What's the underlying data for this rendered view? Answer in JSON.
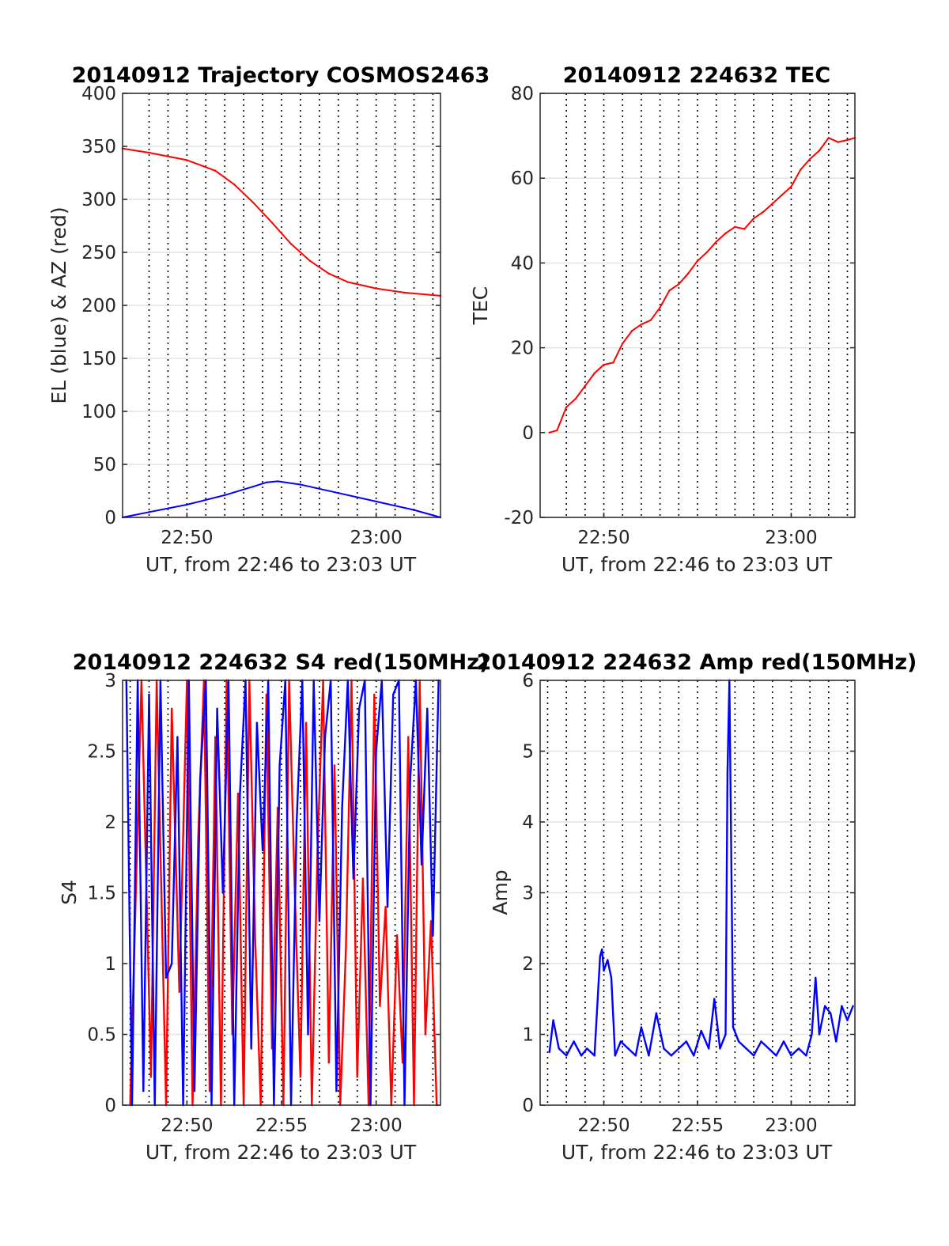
{
  "chart_data": [
    {
      "id": "trajectory",
      "type": "line",
      "title": "20140912 Trajectory COSMOS2463",
      "xlabel": "UT, from 22:46 to 23:03 UT",
      "ylabel": "EL (blue) & AZ (red)",
      "xlim_minutes": [
        46.6,
        63.4
      ],
      "ylim": [
        0,
        400
      ],
      "yticks": [
        0,
        50,
        100,
        150,
        200,
        250,
        300,
        350,
        400
      ],
      "ytick_labels": [
        "0",
        "50",
        "100",
        "150",
        "200",
        "250",
        "300",
        "350",
        "400"
      ],
      "xticks_minutes": [
        50,
        60
      ],
      "xtick_labels": [
        "22:50",
        "23:00"
      ],
      "xgrid_minutes": [
        48,
        49,
        50,
        51,
        52,
        53,
        54,
        55,
        56,
        57,
        58,
        59,
        60,
        61,
        62,
        63
      ],
      "grid": true,
      "series": [
        {
          "key": "az",
          "color": "#ff0000",
          "x": [
            46.6,
            48,
            50,
            51.5,
            52.5,
            53.5,
            54.5,
            55.5,
            56.5,
            57.5,
            58.5,
            60,
            61.5,
            63.4
          ],
          "y": [
            348,
            344,
            337,
            327,
            314,
            297,
            278,
            258,
            242,
            230,
            222,
            216,
            212,
            209
          ]
        },
        {
          "key": "el",
          "color": "#0000ff",
          "x": [
            46.6,
            48,
            50,
            52,
            53.5,
            54.2,
            54.8,
            56,
            58,
            60,
            62,
            63.4
          ],
          "y": [
            0,
            5,
            12,
            21,
            29,
            33,
            34,
            31,
            23,
            15,
            7,
            0
          ]
        }
      ]
    },
    {
      "id": "tec",
      "type": "line",
      "title": "20140912 224632 TEC",
      "xlabel": "UT, from 22:46 to 23:03 UT",
      "ylabel": "TEC",
      "xlim_minutes": [
        46.6,
        63.4
      ],
      "ylim": [
        -20,
        80
      ],
      "yticks": [
        -20,
        0,
        20,
        40,
        60,
        80
      ],
      "ytick_labels": [
        "-20",
        "0",
        "20",
        "40",
        "60",
        "80"
      ],
      "xticks_minutes": [
        50,
        60
      ],
      "xtick_labels": [
        "22:50",
        "23:00"
      ],
      "xgrid_minutes": [
        48,
        49,
        50,
        51,
        52,
        53,
        54,
        55,
        56,
        57,
        58,
        59,
        60,
        61,
        62,
        63
      ],
      "grid": true,
      "series": [
        {
          "key": "tec",
          "color": "#ff0000",
          "x": [
            47.1,
            47.5,
            48,
            48.5,
            49,
            49.5,
            50,
            50.5,
            51,
            51.5,
            52,
            52.5,
            53,
            53.5,
            54,
            54.5,
            55,
            55.5,
            56,
            56.5,
            57,
            57.5,
            58,
            58.5,
            59,
            59.5,
            60,
            60.5,
            61,
            61.5,
            62,
            62.5,
            63,
            63.4
          ],
          "y": [
            0,
            0.5,
            6,
            8,
            11,
            14,
            16,
            16.5,
            21,
            24,
            25.5,
            26.5,
            29.5,
            33.5,
            35,
            37.5,
            40.5,
            42.5,
            45,
            47,
            48.5,
            48,
            50.5,
            52,
            54,
            56,
            58,
            62,
            64.5,
            66.5,
            69.5,
            68.5,
            69,
            69.5
          ]
        }
      ]
    },
    {
      "id": "s4",
      "type": "line",
      "title": "20140912 224632 S4 red(150MHz)",
      "xlabel": "UT, from 22:46 to 23:03 UT",
      "ylabel": "S4",
      "xlim_minutes": [
        46.6,
        63.4
      ],
      "ylim": [
        0,
        3
      ],
      "yticks": [
        0,
        0.5,
        1,
        1.5,
        2,
        2.5,
        3
      ],
      "ytick_labels": [
        "0",
        "0.5",
        "1",
        "1.5",
        "2",
        "2.5",
        "3"
      ],
      "xticks_minutes": [
        50,
        55,
        60
      ],
      "xtick_labels": [
        "22:50",
        "22:55",
        "23:00"
      ],
      "xgrid_minutes": [
        47,
        48,
        49,
        50,
        51,
        52,
        53,
        54,
        55,
        56,
        57,
        58,
        59,
        60,
        61,
        62,
        63
      ],
      "grid": true,
      "series": [
        {
          "key": "s4_red",
          "color": "#ff0000",
          "x": [
            47.0,
            47.6,
            48.1,
            48.4,
            48.9,
            49.2,
            49.6,
            50.0,
            50.3,
            50.6,
            50.9,
            51.2,
            51.5,
            51.8,
            52.1,
            52.4,
            52.7,
            53.0,
            53.3,
            53.6,
            53.9,
            54.2,
            54.5,
            54.8,
            55.1,
            55.4,
            55.7,
            56.0,
            56.3,
            56.6,
            56.9,
            57.2,
            57.5,
            57.8,
            58.1,
            58.4,
            58.7,
            59.0,
            59.3,
            59.6,
            59.9,
            60.2,
            60.5,
            60.8,
            61.1,
            61.4,
            61.7,
            62.0,
            62.3,
            62.6,
            62.9,
            63.2
          ],
          "y": [
            0,
            3,
            0.2,
            3,
            0,
            2.8,
            0.8,
            3,
            0,
            1.9,
            3,
            0.1,
            2.6,
            0,
            3,
            0.5,
            2.2,
            0,
            3,
            1.2,
            0,
            2.9,
            0.4,
            2.1,
            0,
            3,
            1.5,
            0.2,
            2.7,
            0,
            1.8,
            3,
            0.3,
            2.4,
            0,
            1.1,
            3,
            0.2,
            1.6,
            0,
            2.9,
            0.7,
            1.4,
            0,
            1.2,
            0.3,
            2.6,
            0,
            3,
            0.5,
            1.3,
            0
          ]
        },
        {
          "key": "s4_blue",
          "color": "#0000ff",
          "x": [
            46.8,
            47.1,
            47.4,
            47.7,
            48.0,
            48.3,
            48.6,
            48.9,
            49.2,
            49.5,
            49.8,
            50.1,
            50.4,
            50.7,
            51.0,
            51.3,
            51.6,
            51.9,
            52.2,
            52.5,
            52.8,
            53.1,
            53.4,
            53.7,
            54.0,
            54.3,
            54.6,
            54.9,
            55.2,
            55.5,
            55.8,
            56.1,
            56.4,
            56.7,
            57.0,
            57.3,
            57.6,
            57.9,
            58.2,
            58.5,
            58.8,
            59.1,
            59.4,
            59.7,
            60.0,
            60.3,
            60.6,
            60.9,
            61.2,
            61.5,
            61.8,
            62.1,
            62.4,
            62.7,
            63.0,
            63.3
          ],
          "y": [
            3,
            0,
            3,
            0.1,
            2.9,
            0,
            3,
            0.9,
            1.0,
            2.6,
            0,
            3,
            0.1,
            2.3,
            3,
            0,
            2.8,
            1.5,
            3,
            0,
            2.2,
            3,
            0.4,
            2.7,
            1.8,
            3,
            0,
            2.4,
            3,
            0,
            2.0,
            3,
            0.5,
            3,
            1.3,
            2.6,
            3,
            0.1,
            2.1,
            3,
            1.6,
            2.8,
            3,
            0,
            2.5,
            3,
            1.4,
            2.9,
            3,
            0,
            2.3,
            3,
            1.7,
            2.8,
            1.2,
            3
          ]
        }
      ]
    },
    {
      "id": "amp",
      "type": "line",
      "title": "20140912 224632 Amp red(150MHz)",
      "xlabel": "UT, from 22:46 to 23:03 UT",
      "ylabel": "Amp",
      "xlim_minutes": [
        46.6,
        63.4
      ],
      "ylim": [
        0,
        6
      ],
      "yticks": [
        0,
        1,
        2,
        3,
        4,
        5,
        6
      ],
      "ytick_labels": [
        "0",
        "1",
        "2",
        "3",
        "4",
        "5",
        "6"
      ],
      "xticks_minutes": [
        50,
        55,
        60
      ],
      "xtick_labels": [
        "22:50",
        "22:55",
        "23:00"
      ],
      "xgrid_minutes": [
        47,
        48,
        49,
        50,
        51,
        52,
        53,
        54,
        55,
        56,
        57,
        58,
        59,
        60,
        61,
        62,
        63
      ],
      "grid": true,
      "series": [
        {
          "key": "amp",
          "color": "#0000ff",
          "x": [
            47.1,
            47.3,
            47.6,
            48.0,
            48.4,
            48.8,
            49.1,
            49.5,
            49.8,
            49.9,
            50.0,
            50.2,
            50.4,
            50.6,
            50.9,
            51.3,
            51.7,
            52.0,
            52.4,
            52.8,
            53.2,
            53.6,
            54.0,
            54.4,
            54.8,
            55.2,
            55.6,
            55.9,
            56.2,
            56.5,
            56.6,
            56.7,
            56.9,
            57.2,
            57.6,
            58.0,
            58.4,
            58.8,
            59.2,
            59.6,
            60.0,
            60.4,
            60.8,
            61.1,
            61.3,
            61.5,
            61.8,
            62.1,
            62.4,
            62.7,
            63.0,
            63.3
          ],
          "y": [
            0.75,
            1.2,
            0.8,
            0.7,
            0.9,
            0.7,
            0.8,
            0.7,
            2.1,
            2.2,
            1.9,
            2.05,
            1.8,
            0.7,
            0.9,
            0.8,
            0.7,
            1.1,
            0.7,
            1.3,
            0.8,
            0.7,
            0.8,
            0.9,
            0.7,
            1.05,
            0.8,
            1.5,
            0.8,
            1.0,
            4.7,
            6.0,
            1.1,
            0.9,
            0.8,
            0.7,
            0.9,
            0.8,
            0.7,
            0.9,
            0.7,
            0.8,
            0.7,
            1.0,
            1.8,
            1.0,
            1.4,
            1.3,
            0.9,
            1.4,
            1.2,
            1.4
          ]
        }
      ]
    }
  ]
}
